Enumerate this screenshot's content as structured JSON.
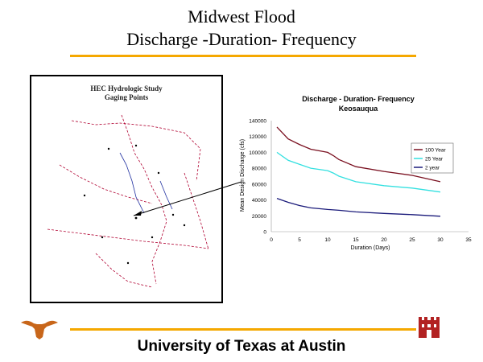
{
  "header": {
    "line1": "Midwest Flood",
    "line2": "Discharge -Duration- Frequency"
  },
  "map": {
    "caption_line1": "HEC Hydrologic Study",
    "caption_line2": "Gaging Points"
  },
  "chart_data": {
    "type": "line",
    "title": "Discharge - Duration- Frequency",
    "subtitle": "Keosauqua",
    "xlabel": "Duration (Days)",
    "ylabel": "Mean Design Discharge (cfs)",
    "xlim": [
      0,
      35
    ],
    "ylim": [
      0,
      140000
    ],
    "xticks": [
      0,
      5,
      10,
      15,
      20,
      25,
      30,
      35
    ],
    "yticks": [
      0,
      20000,
      40000,
      60000,
      80000,
      100000,
      120000,
      140000
    ],
    "grid": false,
    "legend": "top-right",
    "series": [
      {
        "name": "2 year",
        "color": "#1a1a7a",
        "x": [
          1,
          3,
          5,
          7,
          10,
          12,
          15,
          20,
          25,
          30
        ],
        "y": [
          42000,
          37000,
          33000,
          30000,
          28000,
          27000,
          25000,
          23000,
          21500,
          19500
        ]
      },
      {
        "name": "25 Year",
        "color": "#33e0e0",
        "x": [
          1,
          3,
          5,
          7,
          10,
          11,
          12,
          15,
          20,
          25,
          30
        ],
        "y": [
          100000,
          90000,
          85000,
          80000,
          77000,
          74000,
          70000,
          63000,
          58000,
          55000,
          50000
        ]
      },
      {
        "name": "100 Year",
        "color": "#7a1020",
        "x": [
          1,
          3,
          5,
          7,
          10,
          11,
          12,
          15,
          20,
          25,
          30
        ],
        "y": [
          132000,
          117000,
          110000,
          104000,
          100000,
          96000,
          91000,
          82000,
          76000,
          71000,
          63000
        ]
      }
    ]
  },
  "footer": {
    "university": "University of Texas at Austin"
  },
  "colors": {
    "rule": "#f5a800",
    "logo_orange": "#c8661a",
    "logo_red": "#b22222",
    "map_lines": "#b00030",
    "map_rivers": "#2030a0"
  }
}
